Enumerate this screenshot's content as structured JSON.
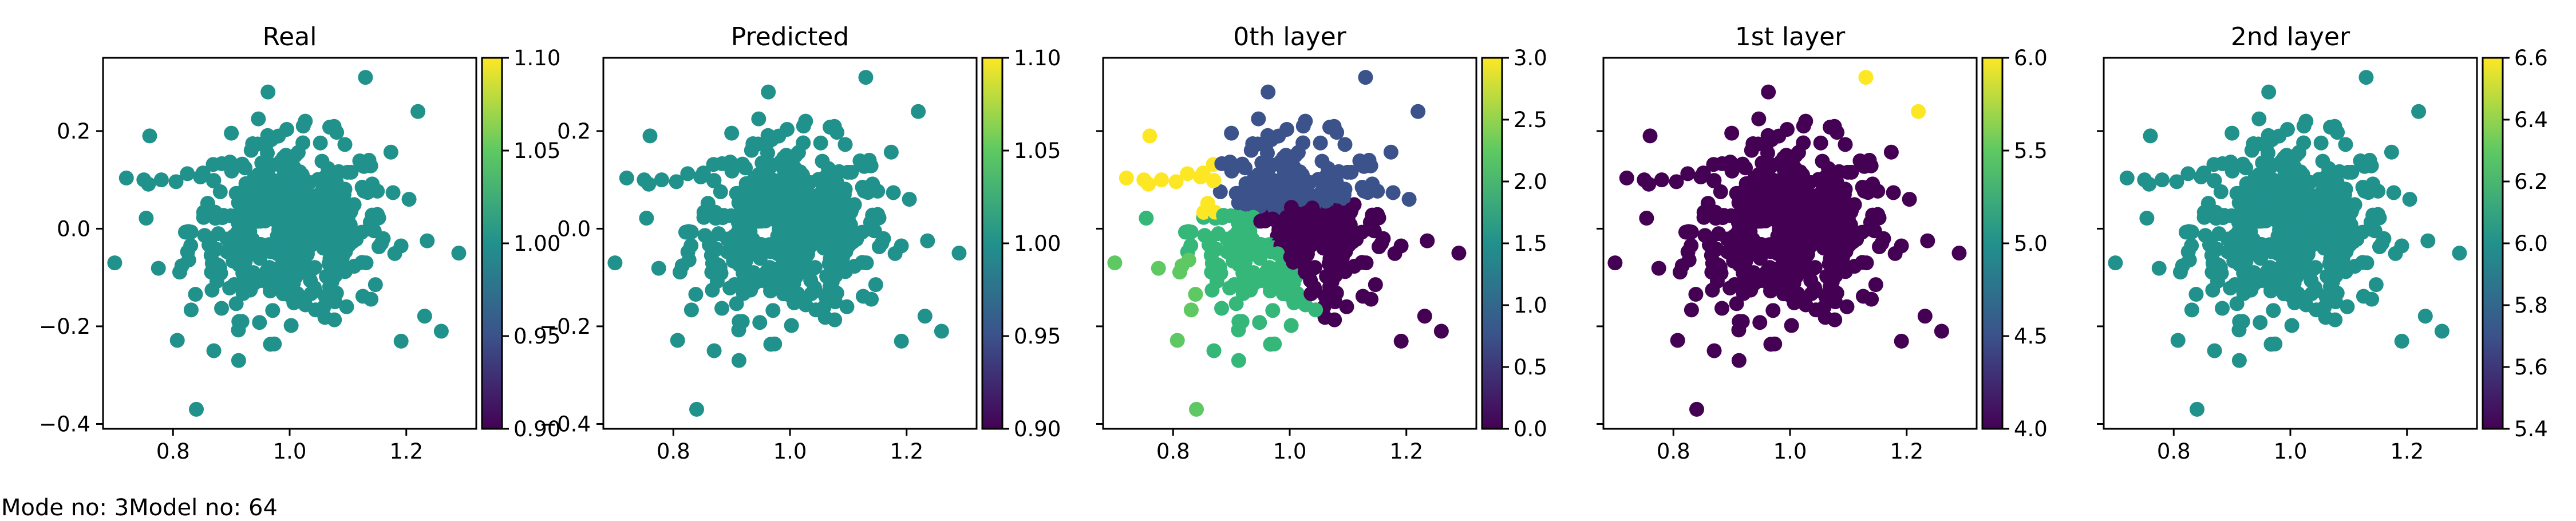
{
  "footer": {
    "text": "Mode no: 3Model no: 64"
  },
  "colors": {
    "viridis_stops": [
      "#440154",
      "#3b528b",
      "#21918c",
      "#5ec962",
      "#fde725"
    ],
    "cluster": {
      "dark_purple": "#440154",
      "blue": "#3b528b",
      "teal": "#21918c",
      "green": "#35b779",
      "light_green": "#5ec962",
      "yellow": "#fde725"
    }
  },
  "chart_data": [
    {
      "type": "scatter",
      "title": "Real",
      "xlim": [
        0.68,
        1.32
      ],
      "ylim": [
        -0.41,
        0.35
      ],
      "xticks": [
        0.8,
        1.0,
        1.2
      ],
      "xticklabels": [
        "0.8",
        "1.0",
        "1.2"
      ],
      "yticks": [
        -0.4,
        -0.2,
        0.0,
        0.2
      ],
      "yticklabels": [
        "−0.4",
        "−0.2",
        "0.0",
        "0.2"
      ],
      "colorbar": {
        "range": [
          0.9,
          1.1
        ],
        "ticks": [
          0.9,
          0.95,
          1.0,
          1.05,
          1.1
        ],
        "ticklabels": [
          "0.90",
          "0.95",
          "1.00",
          "1.05",
          "1.10"
        ]
      },
      "color_value": 1.0,
      "coloring": "uniform",
      "series": [
        {
          "values": "shared cloud: ~500 points centered at (1.0, 0.0), std ≈ (0.09, 0.09); notable outliers (0.70, -0.07), (0.84, -0.37), (1.13, 0.31), (1.29, -0.05), (1.26, -0.21), (0.87, -0.25), (1.22, 0.24)"
        }
      ]
    },
    {
      "type": "scatter",
      "title": "Predicted",
      "xlim": [
        0.68,
        1.32
      ],
      "ylim": [
        -0.41,
        0.35
      ],
      "xticks": [
        0.8,
        1.0,
        1.2
      ],
      "xticklabels": [
        "0.8",
        "1.0",
        "1.2"
      ],
      "yticks": [
        -0.4,
        -0.2,
        0.0,
        0.2
      ],
      "yticklabels": [
        "−0.4",
        "−0.2",
        "0.0",
        "0.2"
      ],
      "colorbar": {
        "range": [
          0.9,
          1.1
        ],
        "ticks": [
          0.9,
          0.95,
          1.0,
          1.05,
          1.1
        ],
        "ticklabels": [
          "0.90",
          "0.95",
          "1.00",
          "1.05",
          "1.10"
        ]
      },
      "color_value": 1.0,
      "coloring": "uniform",
      "series": [
        {
          "values": "same point cloud as Real"
        }
      ]
    },
    {
      "type": "scatter",
      "title": "0th layer",
      "xlim": [
        0.68,
        1.32
      ],
      "ylim": [
        -0.41,
        0.35
      ],
      "xticks": [
        0.8,
        1.0,
        1.2
      ],
      "xticklabels": [
        "0.8",
        "1.0",
        "1.2"
      ],
      "yticks": [],
      "yticklabels": [],
      "colorbar": {
        "range": [
          0.0,
          3.0
        ],
        "ticks": [
          0.0,
          0.5,
          1.0,
          1.5,
          2.0,
          2.5,
          3.0
        ],
        "ticklabels": [
          "0.0",
          "0.5",
          "1.0",
          "1.5",
          "2.0",
          "2.5",
          "3.0"
        ]
      },
      "coloring": "clusters",
      "clusters": [
        {
          "value": 0,
          "region": "right / lower-right of diagonal through (0.93, 0.05)"
        },
        {
          "value": 1,
          "region": "upper band, y > 0.04"
        },
        {
          "value": 2,
          "region": "lower-left, y < 0.03"
        },
        {
          "value": 3,
          "region": "far left upper, x < 0.88, y > 0.03"
        }
      ]
    },
    {
      "type": "scatter",
      "title": "1st layer",
      "xlim": [
        0.68,
        1.32
      ],
      "ylim": [
        -0.41,
        0.35
      ],
      "xticks": [
        0.8,
        1.0,
        1.2
      ],
      "xticklabels": [
        "0.8",
        "1.0",
        "1.2"
      ],
      "yticks": [],
      "yticklabels": [],
      "colorbar": {
        "range": [
          4.0,
          6.0
        ],
        "ticks": [
          4.0,
          4.5,
          5.0,
          5.5,
          6.0
        ],
        "ticklabels": [
          "4.0",
          "4.5",
          "5.0",
          "5.5",
          "6.0"
        ]
      },
      "coloring": "binary",
      "highlight_points": [
        {
          "x": 1.13,
          "y": 0.31,
          "value": 6.0
        },
        {
          "x": 1.22,
          "y": 0.24,
          "value": 6.0
        }
      ],
      "base_value": 4.0
    },
    {
      "type": "scatter",
      "title": "2nd layer",
      "xlim": [
        0.68,
        1.32
      ],
      "ylim": [
        -0.41,
        0.35
      ],
      "xticks": [
        0.8,
        1.0,
        1.2
      ],
      "xticklabels": [
        "0.8",
        "1.0",
        "1.2"
      ],
      "yticks": [],
      "yticklabels": [],
      "colorbar": {
        "range": [
          5.4,
          6.6
        ],
        "ticks": [
          5.4,
          5.6,
          5.8,
          6.0,
          6.2,
          6.4,
          6.6
        ],
        "ticklabels": [
          "5.4",
          "5.6",
          "5.8",
          "6.0",
          "6.2",
          "6.4",
          "6.6"
        ]
      },
      "color_value": 6.0,
      "coloring": "uniform"
    }
  ]
}
